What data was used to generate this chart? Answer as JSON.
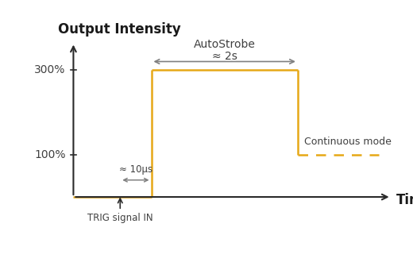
{
  "title": "Output Intensity",
  "xlabel": "Time",
  "bg_color": "#ffffff",
  "signal_color": "#E6A817",
  "arrow_color": "#808080",
  "text_color": "#404040",
  "y_ticks": [
    100,
    300
  ],
  "y_tick_labels": [
    "100%",
    "300%"
  ],
  "ylim": [
    -50,
    390
  ],
  "xlim": [
    -0.5,
    10.5
  ],
  "trig_x": 1.5,
  "rise_x": 2.5,
  "fall_x": 7.2,
  "end_x": 10.0,
  "cont_end_x": 9.8,
  "high_y": 300,
  "low_y": 0,
  "cont_y": 100,
  "annotation_10us": "≈ 10μs",
  "annotation_2s": "≈ 2s",
  "annotation_autostrobe": "AutoStrobe",
  "annotation_cont": "Continuous mode",
  "annotation_trig": "TRIG signal IN"
}
